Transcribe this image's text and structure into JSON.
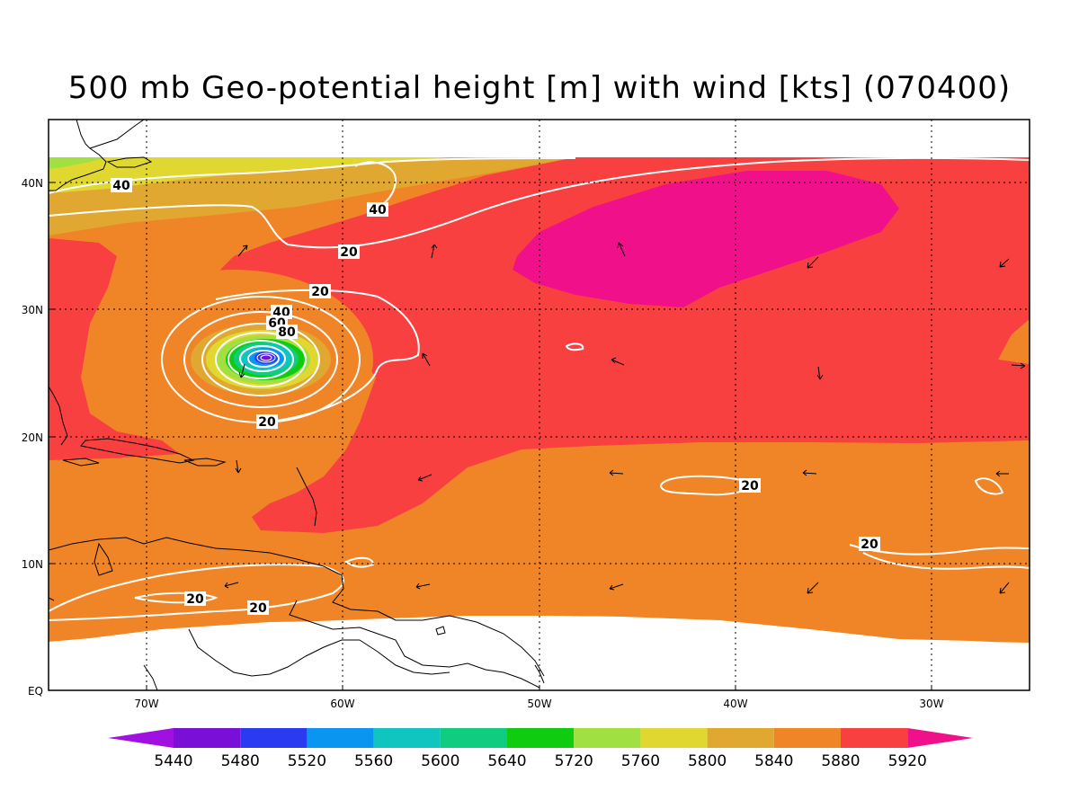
{
  "title": "500 mb Geo-potential height [m] with wind [kts] (070400)",
  "chart_data": {
    "type": "heatmap",
    "title": "500 mb Geo-potential height [m] with wind [kts] (070400)",
    "lon_range": [
      -75,
      -25
    ],
    "lat_range": [
      0,
      45
    ],
    "x_ticks": [
      "70W",
      "60W",
      "50W",
      "40W",
      "30W"
    ],
    "y_ticks": [
      "EQ",
      "10N",
      "20N",
      "30N",
      "40N"
    ],
    "grid": "dotted",
    "colorbar": {
      "levels": [
        "5440",
        "5480",
        "5520",
        "5560",
        "5600",
        "5640",
        "5720",
        "5760",
        "5800",
        "5840",
        "5880",
        "5920"
      ],
      "colors": {
        "below": "#a010e0",
        "bins": [
          "#7a10d8",
          "#2a3af0",
          "#0a96f0",
          "#10c4c0",
          "#10cc80",
          "#10cc10",
          "#a0e040",
          "#e0d830",
          "#e0a830",
          "#f08528",
          "#f84040"
        ],
        "above": "#f0108a"
      }
    },
    "wind_speed_contours": {
      "color": "#ffffff",
      "labels": [
        "40",
        "40",
        "20",
        "20",
        "40",
        "60",
        "80",
        "20",
        "20",
        "20",
        "20",
        "20"
      ]
    },
    "field_colors": {
      "ocean_5880_5920": "#f08528",
      "ridge_above_5920": "#f84040",
      "high_core": "#f0108a",
      "north_5840": "#e0a830",
      "north_5800": "#e0d830"
    }
  }
}
